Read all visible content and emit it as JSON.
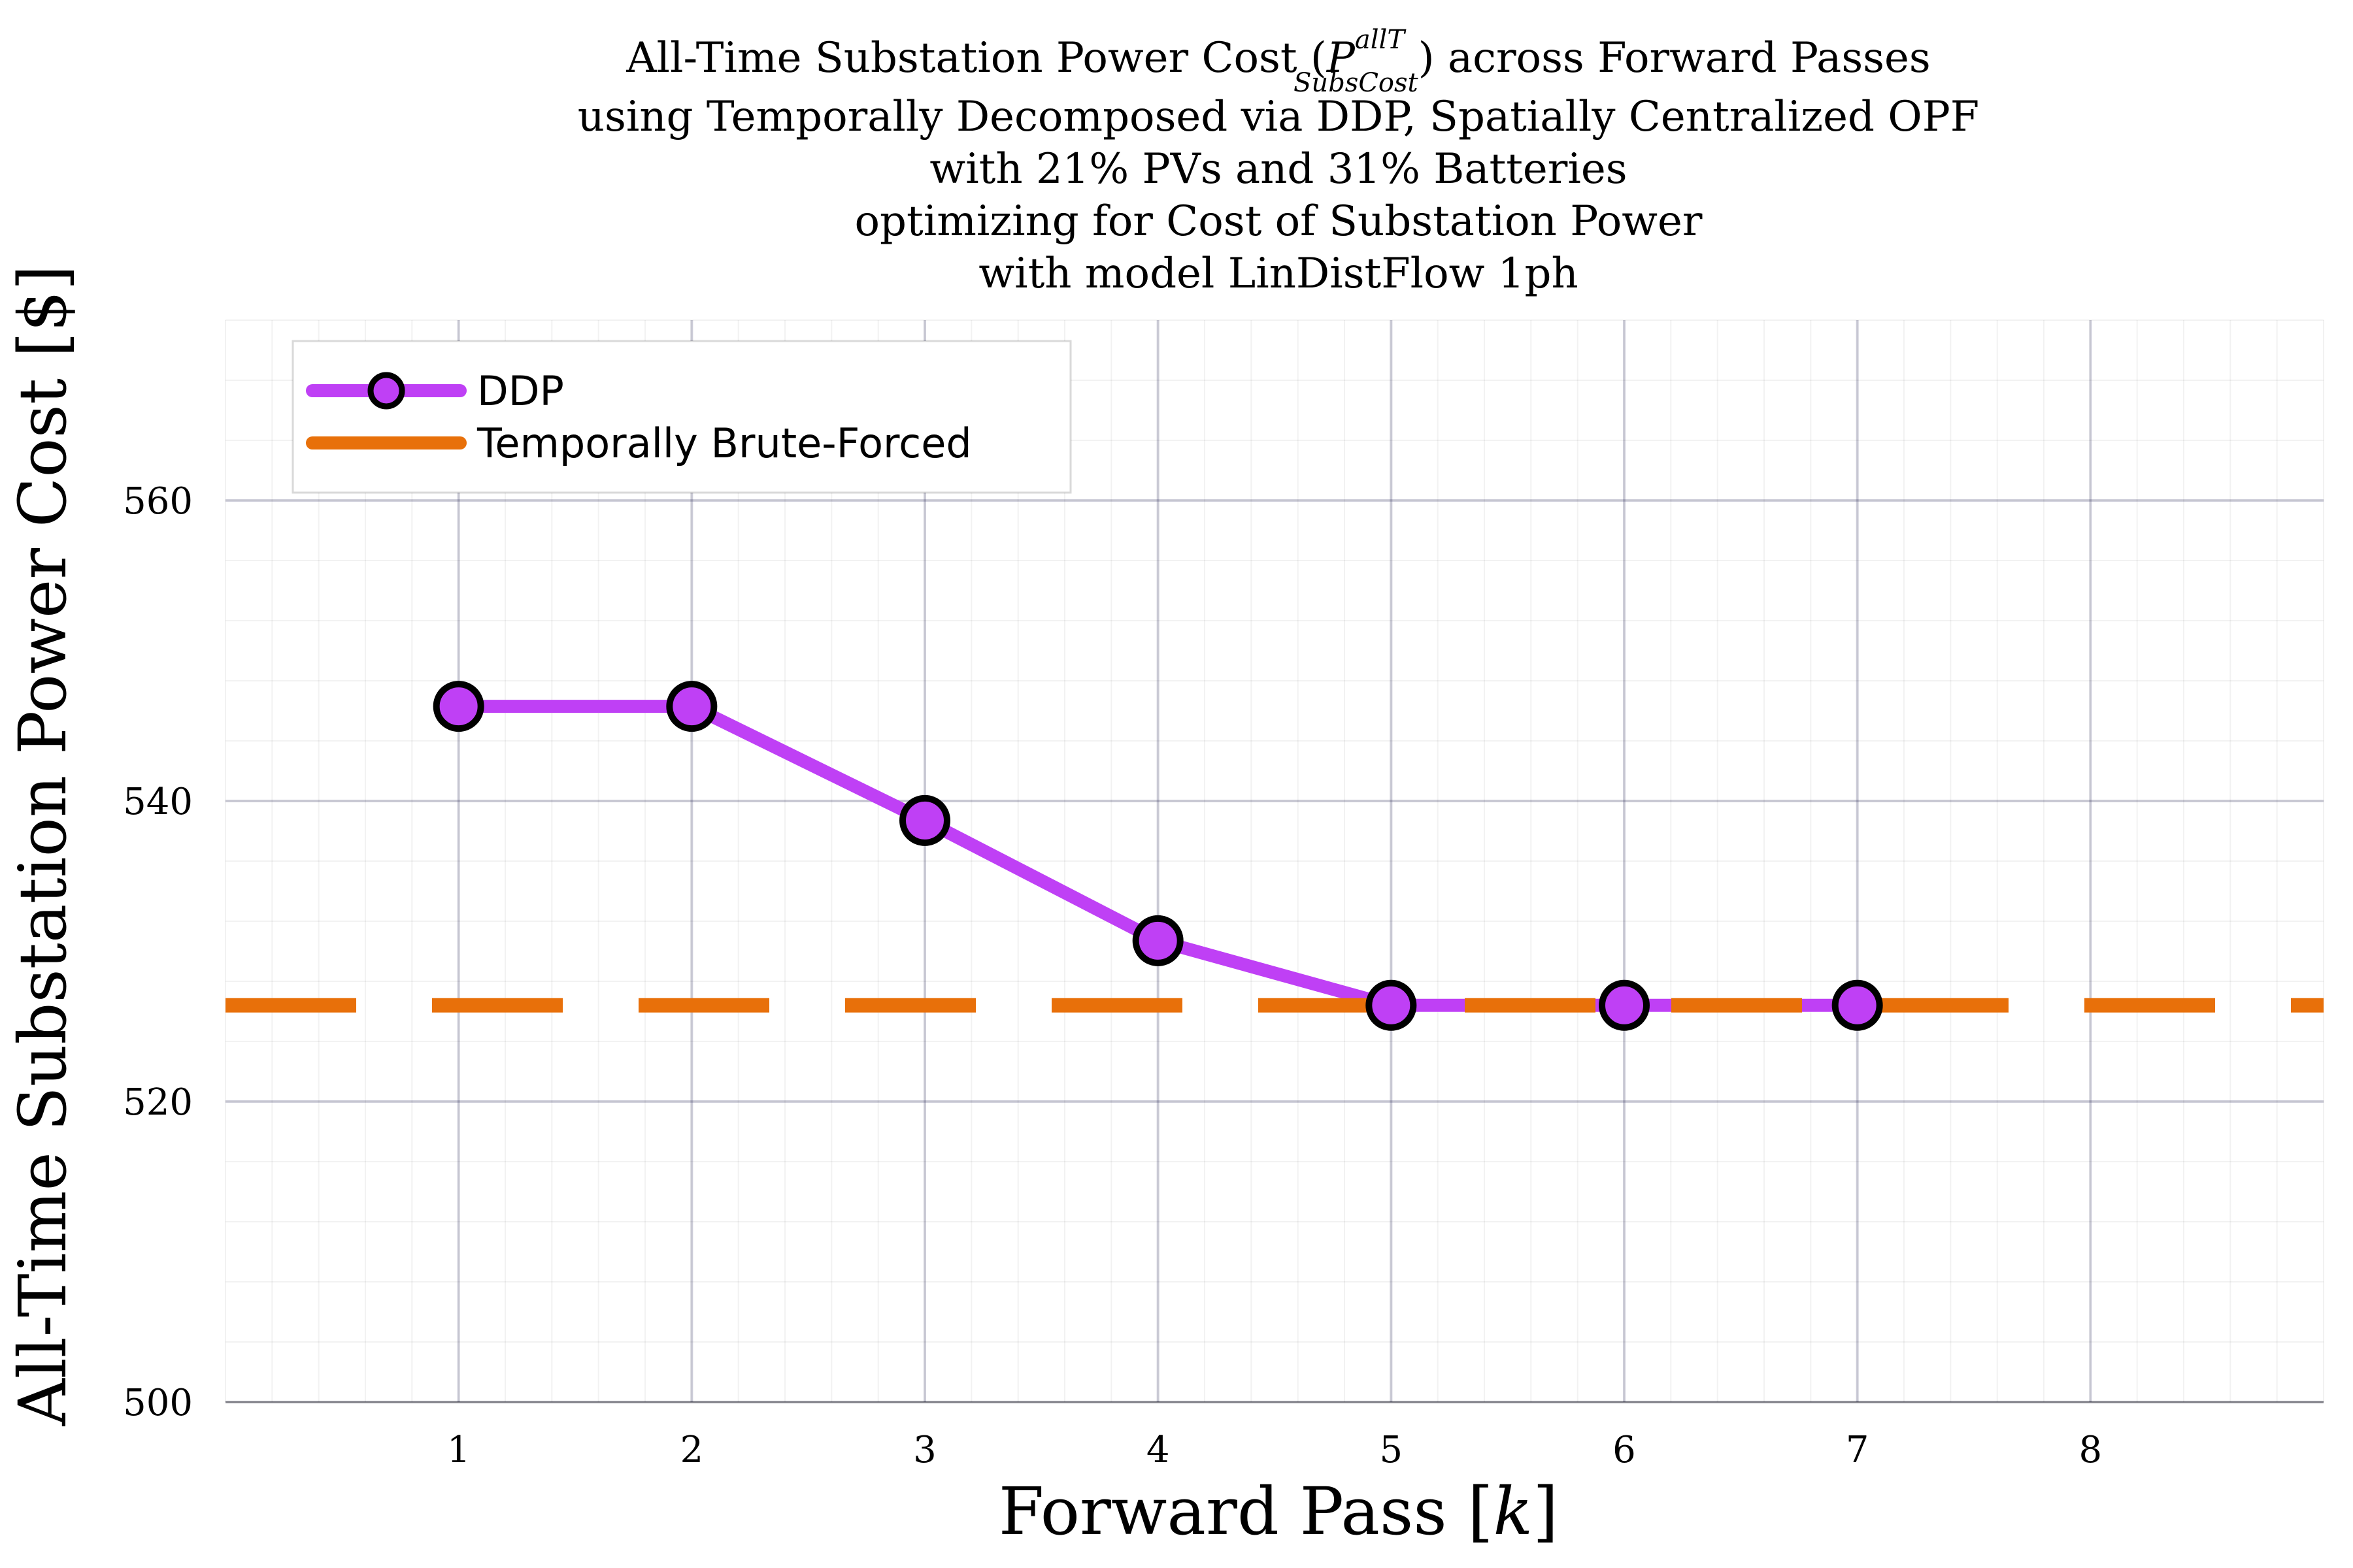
{
  "chart_data": {
    "type": "line",
    "title_lines": [
      "All-Time Substation Power Cost (",
      "using Temporally Decomposed via DDP, Spatially Centralized OPF",
      "with 21% PVs and 31% Batteries",
      "optimizing for Cost of Substation Power",
      "with model LinDistFlow 1ph"
    ],
    "title_symbol": {
      "base": "P",
      "sup": "allT",
      "sub": "SubsCost",
      "suffix": ") across Forward Passes"
    },
    "xlabel": "Forward Pass [",
    "xlabel_var": "k",
    "xlabel_close": "]",
    "ylabel": "All-Time Substation Power Cost [$]",
    "xlim": [
      0,
      9
    ],
    "ylim": [
      500,
      572
    ],
    "x_ticks": [
      "1",
      "2",
      "3",
      "4",
      "5",
      "6",
      "7",
      "8"
    ],
    "y_ticks": [
      "500",
      "520",
      "540",
      "560"
    ],
    "grid": true,
    "legend_position": "top-left",
    "series": [
      {
        "name": "DDP",
        "color": "#bf40f5",
        "marker": "circle",
        "x": [
          1,
          2,
          3,
          4,
          5,
          6,
          7
        ],
        "y": [
          546.3,
          546.3,
          538.7,
          530.7,
          526.4,
          526.4,
          526.4
        ]
      },
      {
        "name": "Temporally Brute-Forced",
        "color": "#e8700a",
        "style": "dashed",
        "y": 526.4
      }
    ]
  }
}
